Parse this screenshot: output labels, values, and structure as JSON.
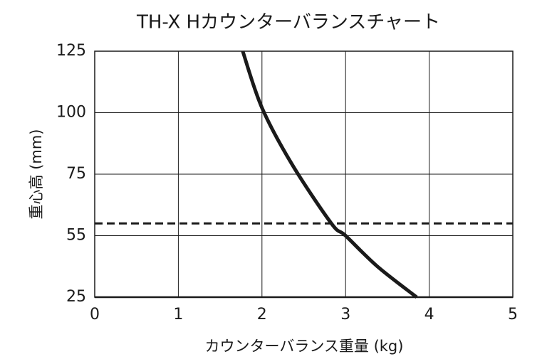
{
  "chart_data": {
    "type": "line",
    "title": "TH-X Hカウンターバランスチャート",
    "x_label": "カウンターバランス重量 (kg)",
    "y_label": "重心高 (mm)",
    "xlim": [
      0,
      5
    ],
    "xticks": [
      0,
      1,
      2,
      3,
      4,
      5
    ],
    "ylim": [
      25,
      125
    ],
    "yticks": [
      25,
      55,
      75,
      100,
      125
    ],
    "grid": true,
    "series": [
      {
        "color": "#1a1a1a",
        "x": [
          1.77,
          2.0,
          2.36,
          2.83,
          3.0,
          3.38,
          3.85
        ],
        "values": [
          125,
          102,
          79,
          59,
          55,
          40,
          25
        ]
      }
    ],
    "reference_lines": [
      {
        "y": 59,
        "color": "#1a1a1a",
        "style": "dashed"
      }
    ]
  }
}
